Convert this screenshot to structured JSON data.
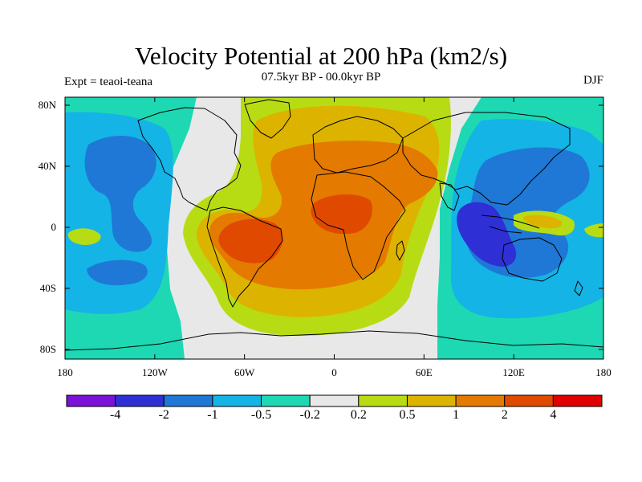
{
  "title": "Velocity Potential at 200 hPa (km2/s)",
  "subtitle": "07.5kyr BP - 00.0kyr BP",
  "left_label": "Expt = teaoi-teana",
  "right_label": "DJF",
  "y_ticks": [
    {
      "label": "80N",
      "lat": 80
    },
    {
      "label": "40N",
      "lat": 40
    },
    {
      "label": "0",
      "lat": 0
    },
    {
      "label": "40S",
      "lat": -40
    },
    {
      "label": "80S",
      "lat": -80
    }
  ],
  "x_ticks": [
    {
      "label": "180",
      "lon": -180
    },
    {
      "label": "120W",
      "lon": -120
    },
    {
      "label": "60W",
      "lon": -60
    },
    {
      "label": "0",
      "lon": 0
    },
    {
      "label": "60E",
      "lon": 60
    },
    {
      "label": "120E",
      "lon": 120
    },
    {
      "label": "180",
      "lon": 180
    }
  ],
  "colorbar": {
    "colors": [
      "#7a12d8",
      "#2f2fd6",
      "#1f78d6",
      "#14b4e6",
      "#1ed8b4",
      "#e8e8e8",
      "#b8dc14",
      "#dcb400",
      "#e47a00",
      "#e04a00",
      "#e00000"
    ],
    "labels": [
      "-4",
      "-2",
      "-1",
      "-0.5",
      "-0.2",
      "0.2",
      "0.5",
      "1",
      "2",
      "4"
    ]
  },
  "colors": {
    "ocean_neutral": "#e8e8e8",
    "coast": "#000000"
  }
}
